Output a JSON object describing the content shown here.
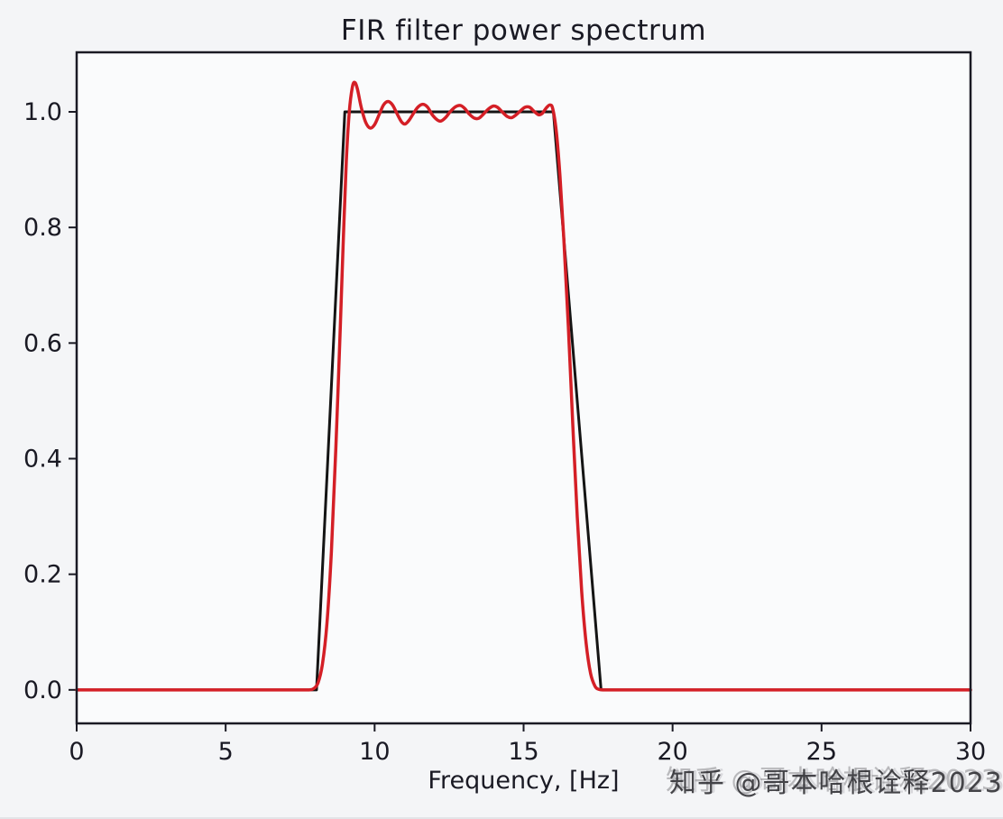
{
  "page": {
    "watermark": "知乎 @哥本哈根诠释2023"
  },
  "chart_data": {
    "type": "line",
    "title": "FIR filter power spectrum",
    "xlabel": "Frequency, [Hz]",
    "ylabel": "",
    "xlim": [
      0,
      30
    ],
    "ylim": [
      -0.058,
      1.103
    ],
    "xticks": [
      0,
      5,
      10,
      15,
      20,
      25,
      30
    ],
    "xtick_labels": [
      "0",
      "5",
      "10",
      "15",
      "20",
      "25",
      "30"
    ],
    "yticks": [
      0.0,
      0.2,
      0.4,
      0.6,
      0.8,
      1.0
    ],
    "ytick_labels": [
      "0.0",
      "0.2",
      "0.4",
      "0.6",
      "0.8",
      "1.0"
    ],
    "grid": false,
    "legend": "none",
    "series": [
      {
        "name": "ideal-bandpass-response",
        "color": "#141414",
        "width": 3,
        "smooth": false,
        "points": [
          [
            0,
            0
          ],
          [
            8.05,
            0
          ],
          [
            9.0,
            1.0
          ],
          [
            16.0,
            1.0
          ],
          [
            17.6,
            0
          ],
          [
            30,
            0
          ]
        ]
      },
      {
        "name": "fir-filter-power-spectrum",
        "color": "#d41f26",
        "width": 3.5,
        "smooth": true,
        "points": [
          [
            0,
            0
          ],
          [
            2,
            0
          ],
          [
            4,
            0
          ],
          [
            6,
            0
          ],
          [
            7.5,
            0
          ],
          [
            7.8,
            0
          ],
          [
            7.95,
            0.002
          ],
          [
            8.1,
            0.012
          ],
          [
            8.25,
            0.045
          ],
          [
            8.4,
            0.115
          ],
          [
            8.55,
            0.24
          ],
          [
            8.7,
            0.42
          ],
          [
            8.85,
            0.63
          ],
          [
            8.95,
            0.78
          ],
          [
            9.05,
            0.915
          ],
          [
            9.15,
            1.0
          ],
          [
            9.25,
            1.042
          ],
          [
            9.33,
            1.051
          ],
          [
            9.42,
            1.04
          ],
          [
            9.55,
            1.008
          ],
          [
            9.7,
            0.982
          ],
          [
            9.85,
            0.972
          ],
          [
            10.0,
            0.978
          ],
          [
            10.15,
            0.995
          ],
          [
            10.3,
            1.012
          ],
          [
            10.45,
            1.018
          ],
          [
            10.6,
            1.012
          ],
          [
            10.75,
            0.997
          ],
          [
            10.9,
            0.983
          ],
          [
            11.02,
            0.979
          ],
          [
            11.15,
            0.985
          ],
          [
            11.3,
            0.997
          ],
          [
            11.45,
            1.008
          ],
          [
            11.62,
            1.013
          ],
          [
            11.78,
            1.008
          ],
          [
            11.92,
            0.996
          ],
          [
            12.08,
            0.987
          ],
          [
            12.22,
            0.984
          ],
          [
            12.38,
            0.99
          ],
          [
            12.55,
            1.001
          ],
          [
            12.72,
            1.009
          ],
          [
            12.88,
            1.011
          ],
          [
            13.02,
            1.006
          ],
          [
            13.18,
            0.996
          ],
          [
            13.35,
            0.989
          ],
          [
            13.5,
            0.989
          ],
          [
            13.65,
            0.996
          ],
          [
            13.82,
            1.005
          ],
          [
            13.98,
            1.01
          ],
          [
            14.12,
            1.008
          ],
          [
            14.28,
            1.0
          ],
          [
            14.45,
            0.992
          ],
          [
            14.6,
            0.99
          ],
          [
            14.75,
            0.995
          ],
          [
            14.9,
            1.002
          ],
          [
            15.05,
            1.008
          ],
          [
            15.2,
            1.008
          ],
          [
            15.35,
            1.001
          ],
          [
            15.5,
            0.995
          ],
          [
            15.62,
            0.997
          ],
          [
            15.75,
            1.006
          ],
          [
            15.88,
            1.012
          ],
          [
            15.98,
            1.005
          ],
          [
            16.1,
            0.965
          ],
          [
            16.22,
            0.89
          ],
          [
            16.35,
            0.78
          ],
          [
            16.5,
            0.63
          ],
          [
            16.65,
            0.46
          ],
          [
            16.8,
            0.3
          ],
          [
            16.95,
            0.17
          ],
          [
            17.1,
            0.08
          ],
          [
            17.25,
            0.028
          ],
          [
            17.4,
            0.006
          ],
          [
            17.52,
            0.001
          ],
          [
            17.65,
            0
          ],
          [
            18,
            0
          ],
          [
            20,
            0
          ],
          [
            24,
            0
          ],
          [
            28,
            0
          ],
          [
            30,
            0
          ]
        ]
      }
    ]
  }
}
